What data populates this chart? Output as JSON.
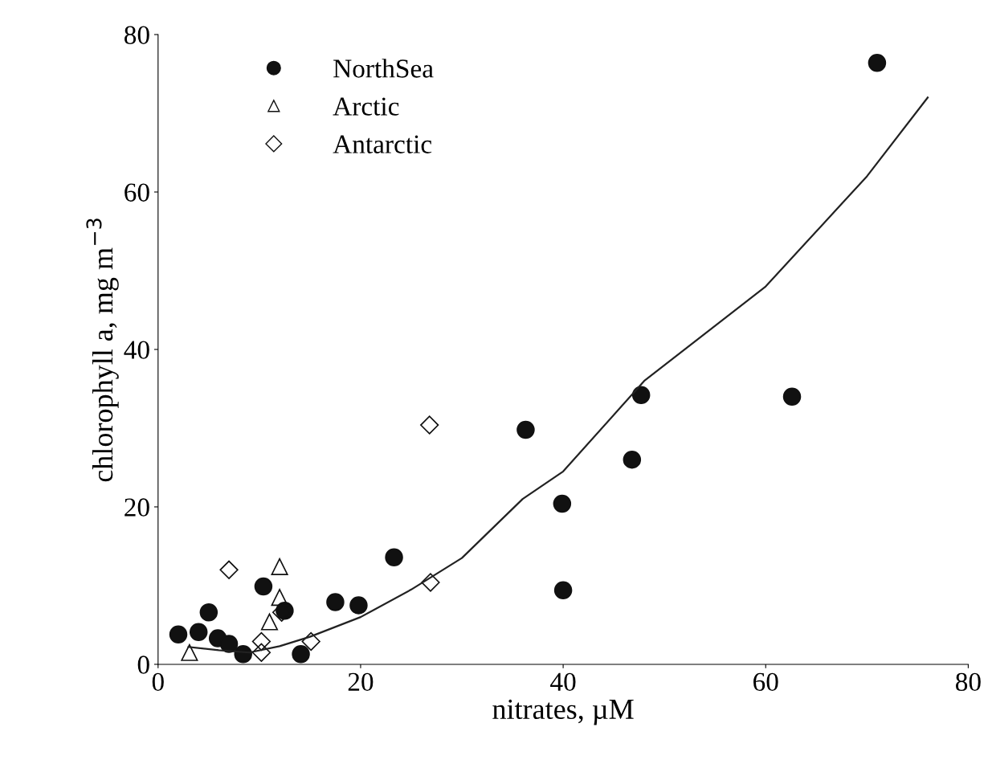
{
  "chart_data": {
    "type": "scatter",
    "xlabel": "nitrates, µM",
    "ylabel": "chlorophyll a, mg m$^{−3}$",
    "xlim": [
      0,
      80
    ],
    "ylim": [
      0,
      80
    ],
    "xticks": [
      0,
      20,
      40,
      60,
      80
    ],
    "yticks": [
      0,
      20,
      40,
      60,
      80
    ],
    "grid": false,
    "legend": "top left",
    "series": [
      {
        "name": "NorthSea",
        "color": "#111111",
        "marker": "circle",
        "x": [
          2.0,
          4.0,
          5.0,
          5.9,
          7.0,
          8.4,
          10.4,
          12.5,
          14.1,
          17.5,
          19.8,
          23.3,
          36.3,
          39.9,
          40.0,
          46.8,
          47.7,
          62.6,
          71.0
        ],
        "values": [
          3.8,
          4.1,
          6.6,
          3.3,
          2.6,
          1.3,
          9.9,
          6.8,
          1.3,
          7.9,
          7.5,
          13.6,
          29.8,
          20.4,
          9.4,
          26.0,
          34.2,
          34.0,
          76.4
        ]
      },
      {
        "name": "Arctic",
        "color": "#111111",
        "marker": "triangle",
        "x": [
          3.1,
          11.0,
          12.0,
          12.0
        ],
        "values": [
          1.5,
          5.4,
          8.5,
          12.4
        ]
      },
      {
        "name": "Antarctic",
        "color": "#111111",
        "marker": "diamond",
        "x": [
          7.0,
          10.2,
          10.2,
          12.2,
          15.1,
          26.8,
          26.9
        ],
        "values": [
          12.0,
          2.9,
          1.5,
          6.6,
          2.9,
          30.4,
          10.4
        ]
      },
      {
        "type": "line",
        "color": "#222222",
        "marker": "none",
        "x": [
          3,
          6,
          9,
          12,
          15,
          20,
          25,
          30,
          36,
          40,
          48,
          60,
          70,
          76
        ],
        "values": [
          2.2,
          1.8,
          1.5,
          2.3,
          3.5,
          6.0,
          9.5,
          13.5,
          21.0,
          24.5,
          36.0,
          48.0,
          62.0,
          72.0
        ]
      }
    ]
  }
}
